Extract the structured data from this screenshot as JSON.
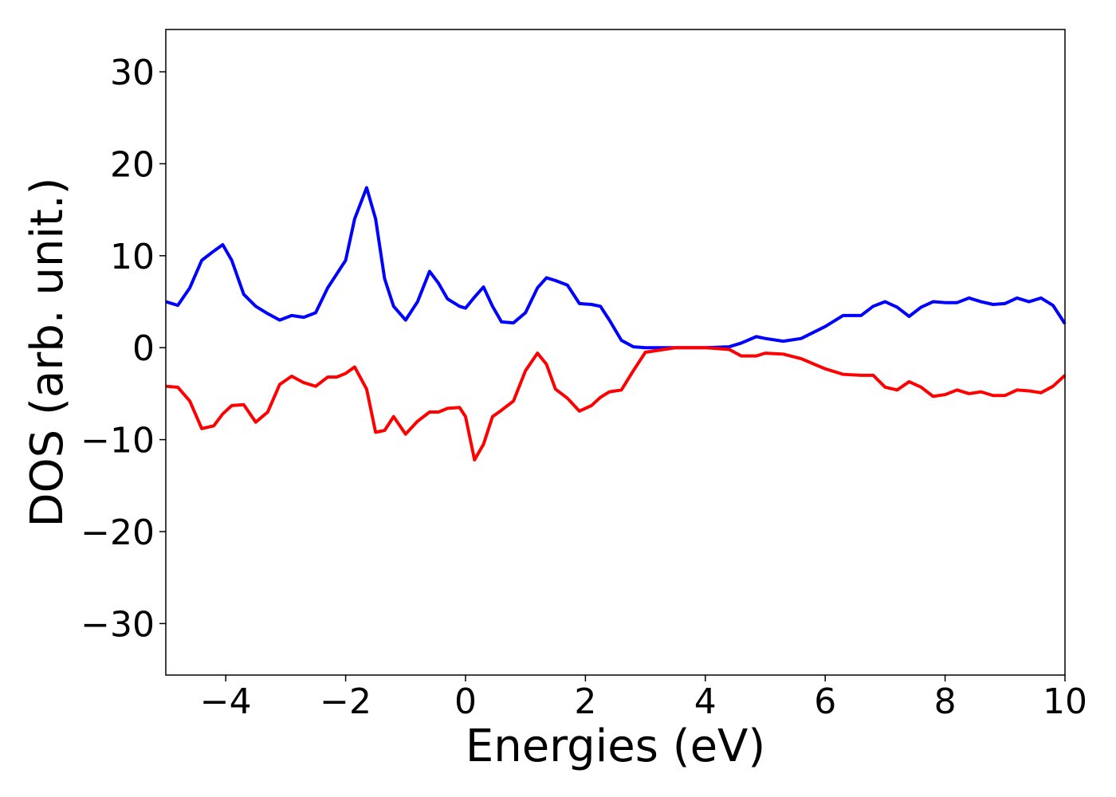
{
  "chart_data": {
    "type": "line",
    "xlabel": "Energies (eV)",
    "ylabel": "DOS (arb. unit.)",
    "x": [
      -5.0,
      -4.8,
      -4.6,
      -4.4,
      -4.2,
      -4.05,
      -3.9,
      -3.7,
      -3.5,
      -3.3,
      -3.1,
      -2.9,
      -2.7,
      -2.5,
      -2.3,
      -2.15,
      -2.0,
      -1.85,
      -1.65,
      -1.5,
      -1.35,
      -1.2,
      -1.0,
      -0.8,
      -0.6,
      -0.45,
      -0.3,
      -0.1,
      0.0,
      0.15,
      0.3,
      0.45,
      0.6,
      0.8,
      1.0,
      1.2,
      1.35,
      1.5,
      1.7,
      1.9,
      2.1,
      2.25,
      2.4,
      2.6,
      2.8,
      3.0,
      3.5,
      4.0,
      4.4,
      4.6,
      4.85,
      5.0,
      5.3,
      5.6,
      6.0,
      6.3,
      6.6,
      6.8,
      7.0,
      7.2,
      7.4,
      7.6,
      7.8,
      8.0,
      8.2,
      8.4,
      8.6,
      8.8,
      9.0,
      9.2,
      9.4,
      9.6,
      9.8,
      10.0
    ],
    "series": [
      {
        "color": "#0000ff",
        "values": [
          5.0,
          4.6,
          6.5,
          9.5,
          10.5,
          11.2,
          9.5,
          5.8,
          4.5,
          3.7,
          3.0,
          3.5,
          3.3,
          3.8,
          6.5,
          8.0,
          9.5,
          14.0,
          17.4,
          14.0,
          7.5,
          4.5,
          3.0,
          5.0,
          8.3,
          7.0,
          5.3,
          4.5,
          4.3,
          5.5,
          6.6,
          4.5,
          2.8,
          2.7,
          3.8,
          6.5,
          7.6,
          7.3,
          6.8,
          4.8,
          4.7,
          4.5,
          3.0,
          0.8,
          0.1,
          0,
          0,
          0,
          0.1,
          0.5,
          1.2,
          1.0,
          0.7,
          1.0,
          2.3,
          3.5,
          3.5,
          4.5,
          5.0,
          4.4,
          3.4,
          4.4,
          5.0,
          4.9,
          4.9,
          5.4,
          5.0,
          4.7,
          4.8,
          5.4,
          5.0,
          5.4,
          4.6,
          2.6
        ]
      },
      {
        "color": "#ff0000",
        "values": [
          -4.2,
          -4.3,
          -5.8,
          -8.8,
          -8.5,
          -7.2,
          -6.3,
          -6.2,
          -8.1,
          -7.0,
          -4.0,
          -3.1,
          -3.8,
          -4.2,
          -3.2,
          -3.2,
          -2.8,
          -2.1,
          -4.5,
          -9.2,
          -9.0,
          -7.5,
          -9.4,
          -8.0,
          -7.0,
          -7.0,
          -6.6,
          -6.5,
          -7.5,
          -12.2,
          -10.5,
          -7.5,
          -6.8,
          -5.8,
          -2.5,
          -0.6,
          -1.8,
          -4.5,
          -5.5,
          -6.9,
          -6.3,
          -5.4,
          -4.8,
          -4.6,
          -2.5,
          -0.5,
          0,
          0,
          -0.2,
          -0.9,
          -0.9,
          -0.6,
          -0.7,
          -1.2,
          -2.3,
          -2.9,
          -3.0,
          -3.0,
          -4.3,
          -4.6,
          -3.7,
          -4.3,
          -5.3,
          -5.1,
          -4.6,
          -5.0,
          -4.8,
          -5.2,
          -5.2,
          -4.6,
          -4.7,
          -4.9,
          -4.2,
          -3.0
        ]
      }
    ],
    "xlim": [
      -5,
      10
    ],
    "xticks": [
      {
        "value": -4,
        "label": "−4"
      },
      {
        "value": -2,
        "label": "−2"
      },
      0,
      2,
      4,
      6,
      8,
      10
    ],
    "ylim": [
      -35.6,
      34.6
    ],
    "yticks": [
      {
        "value": -30,
        "label": "−30"
      },
      {
        "value": -20,
        "label": "−20"
      },
      {
        "value": -10,
        "label": "−10"
      },
      0,
      10,
      20,
      30
    ],
    "grid": false
  }
}
